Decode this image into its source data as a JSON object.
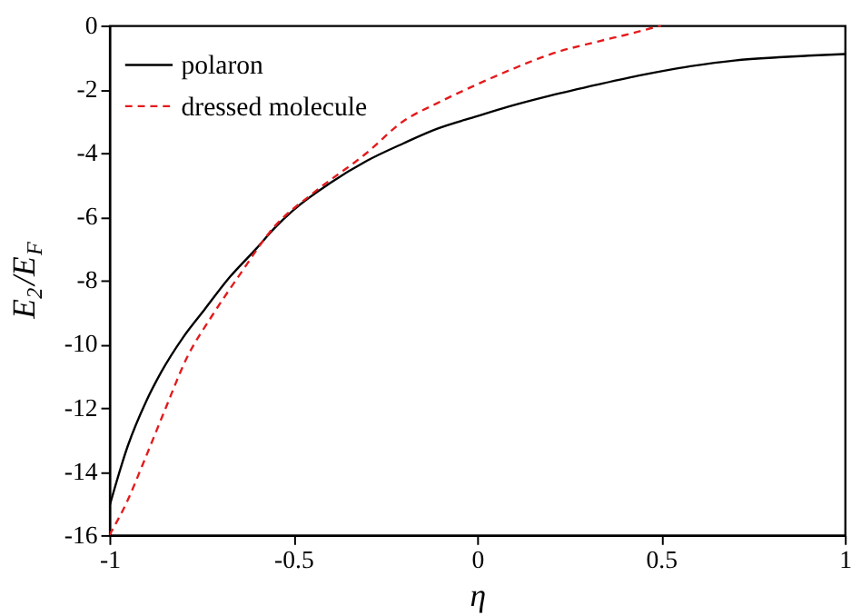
{
  "chart_data": {
    "type": "line",
    "xlabel": "η",
    "ylabel": "E$_{2}$/E$_{F}$",
    "xlim": [
      -1,
      1
    ],
    "xticks": [
      -1,
      -0.5,
      0,
      0.5,
      1
    ],
    "ylim": [
      -16,
      0
    ],
    "yticks": [
      -16,
      -14,
      -12,
      -10,
      -8,
      -6,
      -4,
      -2,
      0
    ],
    "grid": false,
    "legend": "top left",
    "series": [
      {
        "name": "polaron",
        "color": "#000000",
        "line_style": "solid",
        "x": [
          -1,
          -0.95,
          -0.9,
          -0.86,
          -0.8,
          -0.74,
          -0.68,
          -0.6,
          -0.55,
          -0.5,
          -0.4,
          -0.3,
          -0.2,
          -0.11,
          0,
          0.085,
          0.2,
          0.33,
          0.45,
          0.57,
          0.7,
          0.82,
          0.9,
          1
        ],
        "values": [
          -15.1,
          -13.2,
          -11.8,
          -10.9,
          -9.8,
          -8.9,
          -8.0,
          -7.0,
          -6.35,
          -5.8,
          -4.95,
          -4.25,
          -3.7,
          -3.25,
          -2.85,
          -2.55,
          -2.2,
          -1.85,
          -1.55,
          -1.3,
          -1.1,
          -1.0,
          -0.95,
          -0.9
        ]
      },
      {
        "name": "dressed molecule",
        "color": "#e41a1c",
        "line_style": "dashed",
        "x": [
          -1,
          -0.95,
          -0.91,
          -0.85,
          -0.79,
          -0.72,
          -0.65,
          -0.55,
          -0.45,
          -0.3,
          -0.2,
          -0.11,
          0,
          0.1,
          0.2,
          0.33,
          0.42,
          0.5
        ],
        "values": [
          -16,
          -14.9,
          -13.8,
          -12.1,
          -10.45,
          -9.1,
          -7.9,
          -6.3,
          -5.3,
          -4.0,
          -3.0,
          -2.45,
          -1.85,
          -1.35,
          -0.9,
          -0.5,
          -0.25,
          0
        ]
      }
    ]
  }
}
